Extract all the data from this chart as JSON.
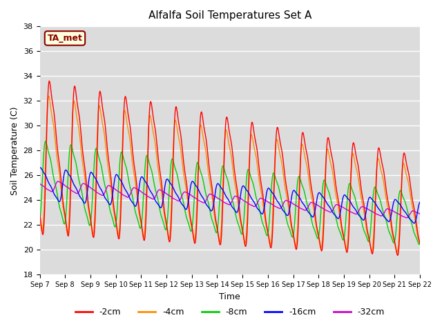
{
  "title": "Alfalfa Soil Temperatures Set A",
  "xlabel": "Time",
  "ylabel": "Soil Temperature (C)",
  "ylim": [
    18,
    38
  ],
  "xlim_days": [
    7,
    22
  ],
  "annotation": "TA_met",
  "annotation_color": "#8B0000",
  "annotation_bg": "#FFFFDD",
  "bg_color": "#DCDCDC",
  "grid_color": "#FFFFFF",
  "series_colors": {
    "-2cm": "#FF0000",
    "-4cm": "#FF8C00",
    "-8cm": "#00CC00",
    "-16cm": "#0000FF",
    "-32cm": "#CC00CC"
  },
  "tick_labels": [
    "Sep 7",
    "Sep 8",
    "Sep 9",
    "Sep 10",
    "Sep 11",
    "Sep 12",
    "Sep 13",
    "Sep 14",
    "Sep 15",
    "Sep 16",
    "Sep 17",
    "Sep 18",
    "Sep 19",
    "Sep 20",
    "Sep 21",
    "Sep 22"
  ]
}
